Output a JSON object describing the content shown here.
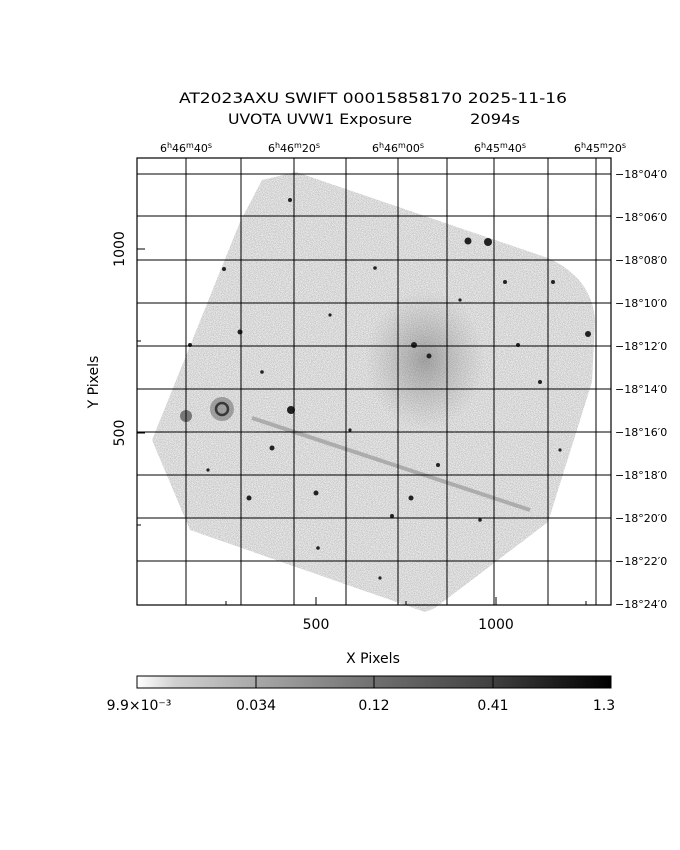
{
  "header": {
    "title_line1": "AT2023AXU SWIFT 00015858170 2025-11-16",
    "title_line2_left": "UVOTA UVW1 Exposure",
    "title_line2_right": "2094s"
  },
  "axes": {
    "x_label": "X Pixels",
    "y_label": "Y Pixels",
    "x_ticks": [
      {
        "value": 500,
        "label": "500"
      },
      {
        "value": 1000,
        "label": "1000"
      }
    ],
    "y_ticks": [
      {
        "value": 500,
        "label": "500"
      },
      {
        "value": 1000,
        "label": "1000"
      }
    ],
    "ra_ticks": [
      {
        "h": "6",
        "m": "46",
        "s": "40"
      },
      {
        "h": "6",
        "m": "46",
        "s": "20"
      },
      {
        "h": "6",
        "m": "46",
        "s": "00"
      },
      {
        "h": "6",
        "m": "45",
        "s": "40"
      },
      {
        "h": "6",
        "m": "45",
        "s": "20"
      }
    ],
    "dec_ticks": [
      "−18°04′0",
      "−18°06′0",
      "−18°08′0",
      "−18°10′0",
      "−18°12′0",
      "−18°14′0",
      "−18°16′0",
      "−18°18′0",
      "−18°20′0",
      "−18°22′0",
      "−18°24′0"
    ]
  },
  "colorbar": {
    "labels": [
      "9.9×10⁻³",
      "0.034",
      "0.12",
      "0.41",
      "1.3"
    ],
    "colors": {
      "low": "#ffffff",
      "high": "#000000"
    }
  }
}
